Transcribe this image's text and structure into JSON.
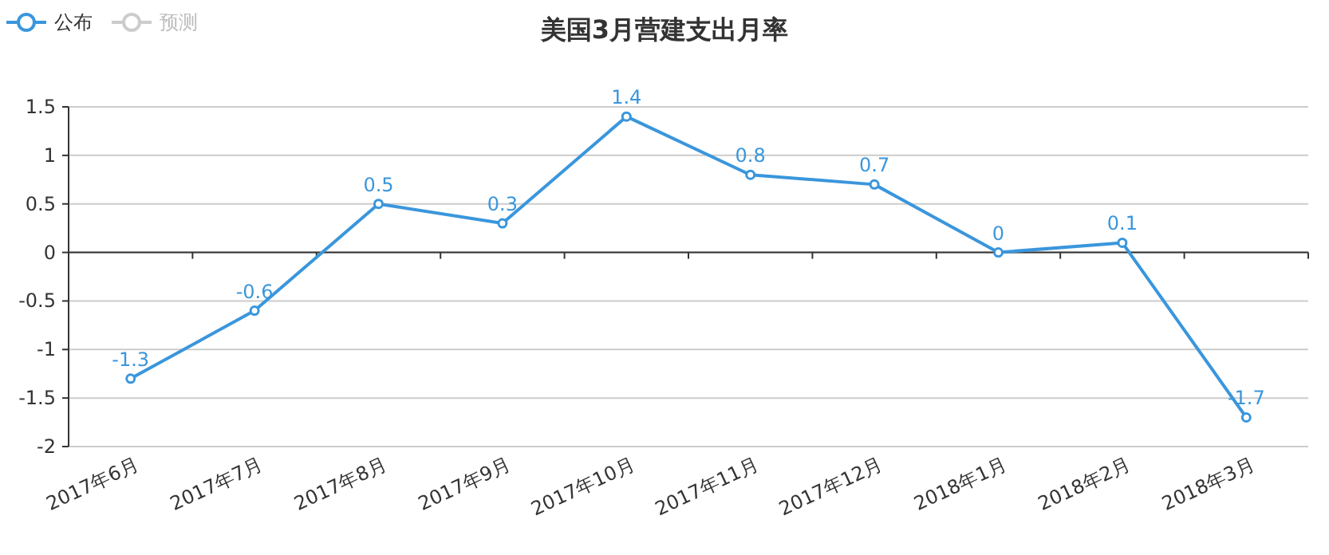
{
  "chart_data": {
    "type": "line",
    "title": "美国3月营建支出月率",
    "categories": [
      "2017年6月",
      "2017年7月",
      "2017年8月",
      "2017年9月",
      "2017年10月",
      "2017年11月",
      "2017年12月",
      "2018年1月",
      "2018年2月",
      "2018年3月"
    ],
    "series": [
      {
        "name": "公布",
        "color": "#3a96dc",
        "values": [
          -1.3,
          -0.6,
          0.5,
          0.3,
          1.4,
          0.8,
          0.7,
          0,
          0.1,
          -1.7
        ]
      },
      {
        "name": "预测",
        "color": "#cccccc",
        "values": [
          null,
          null,
          null,
          null,
          null,
          null,
          null,
          null,
          null,
          null
        ]
      }
    ],
    "ylim": [
      -2,
      1.5
    ],
    "yticks": [
      -2,
      -1.5,
      -1,
      -0.5,
      0,
      0.5,
      1,
      1.5
    ],
    "grid": "y",
    "legend": "top left",
    "marker": "circle",
    "data_labels": true
  }
}
